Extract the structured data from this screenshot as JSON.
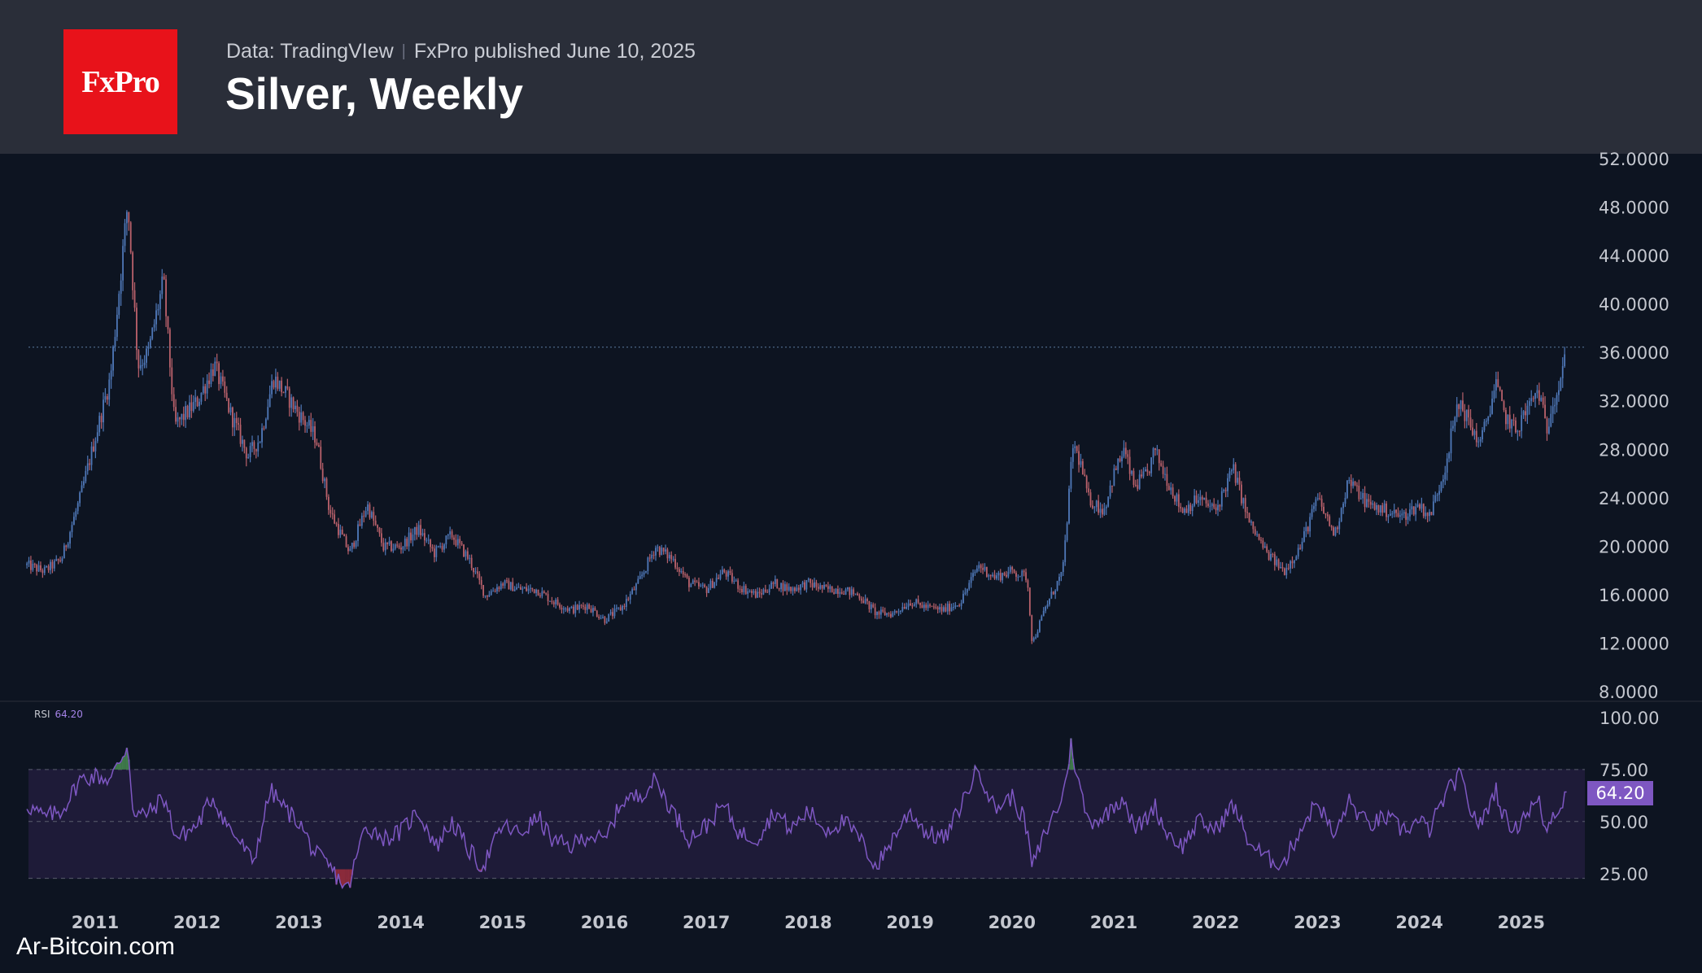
{
  "header": {
    "logo_text": "FxPro",
    "source_text": "Data: TradingVIew",
    "published_text": "FxPro published June 10, 2025",
    "title": "Silver, Weekly"
  },
  "watermark": "Ar-Bitcoin.com",
  "colors": {
    "background": "#0d1421",
    "header_bg": "#2a2e39",
    "logo_bg": "#e8121a",
    "candle_up": "#4f78b8",
    "candle_down": "#b9616b",
    "rsi_line": "#7e57c2",
    "rsi_band": "#1e1b38",
    "rsi_overbought_fill": "#3f7a4a",
    "rsi_oversold_fill": "#8a2a3a"
  },
  "rsi": {
    "label": "RSI",
    "value": "64.20",
    "badge": "64.20"
  },
  "chart_data": [
    {
      "type": "candlestick",
      "title": "Silver, Weekly",
      "yticks": [
        "52.0000",
        "48.0000",
        "44.0000",
        "40.0000",
        "36.0000",
        "32.0000",
        "28.0000",
        "24.0000",
        "20.0000",
        "16.0000",
        "12.0000",
        "8.0000"
      ],
      "ylim": [
        8,
        52
      ],
      "xticks": [
        "2011",
        "2012",
        "2013",
        "2014",
        "2015",
        "2016",
        "2017",
        "2018",
        "2019",
        "2020",
        "2021",
        "2022",
        "2023",
        "2024",
        "2025"
      ],
      "xlim": [
        2010.33,
        2025.5
      ],
      "last_price_line": 36.5,
      "price_path": [
        [
          2010.33,
          18.5
        ],
        [
          2010.5,
          18.0
        ],
        [
          2010.67,
          19.0
        ],
        [
          2010.85,
          24.0
        ],
        [
          2011.0,
          29.0
        ],
        [
          2011.15,
          34.0
        ],
        [
          2011.32,
          48.5
        ],
        [
          2011.42,
          35.0
        ],
        [
          2011.52,
          36.0
        ],
        [
          2011.67,
          42.0
        ],
        [
          2011.78,
          30.0
        ],
        [
          2012.0,
          32.0
        ],
        [
          2012.17,
          35.0
        ],
        [
          2012.33,
          31.0
        ],
        [
          2012.5,
          27.5
        ],
        [
          2012.62,
          29.0
        ],
        [
          2012.75,
          34.0
        ],
        [
          2012.88,
          32.5
        ],
        [
          2013.0,
          31.0
        ],
        [
          2013.17,
          29.0
        ],
        [
          2013.3,
          23.0
        ],
        [
          2013.5,
          19.5
        ],
        [
          2013.67,
          23.5
        ],
        [
          2013.83,
          20.0
        ],
        [
          2014.0,
          20.0
        ],
        [
          2014.17,
          21.5
        ],
        [
          2014.33,
          19.5
        ],
        [
          2014.5,
          21.0
        ],
        [
          2014.67,
          19.0
        ],
        [
          2014.83,
          16.0
        ],
        [
          2015.0,
          17.0
        ],
        [
          2015.17,
          16.5
        ],
        [
          2015.33,
          16.5
        ],
        [
          2015.5,
          15.5
        ],
        [
          2015.67,
          14.8
        ],
        [
          2015.83,
          15.2
        ],
        [
          2016.0,
          14.0
        ],
        [
          2016.17,
          15.0
        ],
        [
          2016.33,
          17.0
        ],
        [
          2016.5,
          20.0
        ],
        [
          2016.67,
          19.0
        ],
        [
          2016.83,
          17.0
        ],
        [
          2017.0,
          16.5
        ],
        [
          2017.17,
          18.0
        ],
        [
          2017.33,
          16.7
        ],
        [
          2017.5,
          16.0
        ],
        [
          2017.67,
          17.0
        ],
        [
          2017.83,
          16.5
        ],
        [
          2018.0,
          17.0
        ],
        [
          2018.17,
          16.5
        ],
        [
          2018.33,
          16.5
        ],
        [
          2018.5,
          16.0
        ],
        [
          2018.67,
          14.5
        ],
        [
          2018.83,
          14.5
        ],
        [
          2019.0,
          15.5
        ],
        [
          2019.17,
          15.0
        ],
        [
          2019.33,
          14.8
        ],
        [
          2019.5,
          15.5
        ],
        [
          2019.67,
          18.5
        ],
        [
          2019.83,
          17.5
        ],
        [
          2020.0,
          18.0
        ],
        [
          2020.15,
          17.5
        ],
        [
          2020.2,
          12.0
        ],
        [
          2020.33,
          15.0
        ],
        [
          2020.5,
          18.0
        ],
        [
          2020.6,
          28.5
        ],
        [
          2020.67,
          27.0
        ],
        [
          2020.75,
          24.0
        ],
        [
          2020.9,
          23.0
        ],
        [
          2021.0,
          26.0
        ],
        [
          2021.1,
          28.0
        ],
        [
          2021.2,
          25.0
        ],
        [
          2021.33,
          26.0
        ],
        [
          2021.4,
          28.0
        ],
        [
          2021.5,
          26.0
        ],
        [
          2021.67,
          23.0
        ],
        [
          2021.83,
          24.0
        ],
        [
          2022.0,
          23.0
        ],
        [
          2022.17,
          26.5
        ],
        [
          2022.33,
          22.0
        ],
        [
          2022.5,
          19.5
        ],
        [
          2022.67,
          18.0
        ],
        [
          2022.83,
          20.0
        ],
        [
          2023.0,
          24.0
        ],
        [
          2023.17,
          21.0
        ],
        [
          2023.3,
          25.5
        ],
        [
          2023.5,
          23.5
        ],
        [
          2023.67,
          23.0
        ],
        [
          2023.83,
          22.5
        ],
        [
          2024.0,
          23.5
        ],
        [
          2024.1,
          22.5
        ],
        [
          2024.25,
          26.5
        ],
        [
          2024.33,
          30.0
        ],
        [
          2024.4,
          32.0
        ],
        [
          2024.5,
          30.0
        ],
        [
          2024.6,
          28.5
        ],
        [
          2024.75,
          33.5
        ],
        [
          2024.83,
          31.0
        ],
        [
          2024.95,
          29.5
        ],
        [
          2025.0,
          30.5
        ],
        [
          2025.17,
          33.0
        ],
        [
          2025.25,
          29.5
        ],
        [
          2025.3,
          32.0
        ],
        [
          2025.36,
          33.0
        ],
        [
          2025.44,
          36.5
        ]
      ]
    },
    {
      "type": "line",
      "title": "RSI",
      "yticks": [
        "100.00",
        "75.00",
        "50.00",
        "25.00"
      ],
      "ylim": [
        10,
        100
      ],
      "bands": [
        25,
        50,
        75
      ],
      "last_value": 64.2,
      "rsi_path": [
        [
          2010.33,
          58
        ],
        [
          2010.5,
          52
        ],
        [
          2010.67,
          55
        ],
        [
          2010.85,
          70
        ],
        [
          2011.0,
          72
        ],
        [
          2011.15,
          70
        ],
        [
          2011.32,
          87
        ],
        [
          2011.38,
          52
        ],
        [
          2011.55,
          55
        ],
        [
          2011.67,
          62
        ],
        [
          2011.8,
          42
        ],
        [
          2012.0,
          48
        ],
        [
          2012.15,
          62
        ],
        [
          2012.3,
          48
        ],
        [
          2012.45,
          38
        ],
        [
          2012.55,
          30
        ],
        [
          2012.72,
          65
        ],
        [
          2012.88,
          55
        ],
        [
          2013.0,
          50
        ],
        [
          2013.15,
          35
        ],
        [
          2013.3,
          28
        ],
        [
          2013.48,
          17
        ],
        [
          2013.65,
          48
        ],
        [
          2013.85,
          42
        ],
        [
          2014.0,
          45
        ],
        [
          2014.17,
          55
        ],
        [
          2014.35,
          38
        ],
        [
          2014.5,
          50
        ],
        [
          2014.67,
          36
        ],
        [
          2014.8,
          28
        ],
        [
          2015.0,
          48
        ],
        [
          2015.17,
          44
        ],
        [
          2015.35,
          52
        ],
        [
          2015.5,
          40
        ],
        [
          2015.67,
          38
        ],
        [
          2015.85,
          44
        ],
        [
          2016.0,
          40
        ],
        [
          2016.17,
          60
        ],
        [
          2016.33,
          62
        ],
        [
          2016.5,
          70
        ],
        [
          2016.67,
          55
        ],
        [
          2016.83,
          42
        ],
        [
          2017.0,
          48
        ],
        [
          2017.17,
          58
        ],
        [
          2017.33,
          44
        ],
        [
          2017.5,
          42
        ],
        [
          2017.67,
          55
        ],
        [
          2017.83,
          46
        ],
        [
          2018.0,
          55
        ],
        [
          2018.17,
          46
        ],
        [
          2018.35,
          50
        ],
        [
          2018.5,
          42
        ],
        [
          2018.67,
          28
        ],
        [
          2018.83,
          42
        ],
        [
          2019.0,
          55
        ],
        [
          2019.17,
          44
        ],
        [
          2019.35,
          42
        ],
        [
          2019.5,
          58
        ],
        [
          2019.67,
          76
        ],
        [
          2019.83,
          56
        ],
        [
          2020.0,
          62
        ],
        [
          2020.13,
          50
        ],
        [
          2020.2,
          28
        ],
        [
          2020.33,
          45
        ],
        [
          2020.5,
          62
        ],
        [
          2020.58,
          87
        ],
        [
          2020.67,
          65
        ],
        [
          2020.75,
          50
        ],
        [
          2020.9,
          52
        ],
        [
          2021.0,
          58
        ],
        [
          2021.1,
          62
        ],
        [
          2021.2,
          46
        ],
        [
          2021.33,
          52
        ],
        [
          2021.4,
          58
        ],
        [
          2021.5,
          46
        ],
        [
          2021.67,
          38
        ],
        [
          2021.83,
          50
        ],
        [
          2022.0,
          46
        ],
        [
          2022.17,
          58
        ],
        [
          2022.33,
          40
        ],
        [
          2022.5,
          32
        ],
        [
          2022.67,
          30
        ],
        [
          2022.83,
          46
        ],
        [
          2023.0,
          60
        ],
        [
          2023.17,
          42
        ],
        [
          2023.3,
          60
        ],
        [
          2023.5,
          48
        ],
        [
          2023.67,
          52
        ],
        [
          2023.83,
          46
        ],
        [
          2024.0,
          50
        ],
        [
          2024.1,
          46
        ],
        [
          2024.25,
          62
        ],
        [
          2024.33,
          68
        ],
        [
          2024.4,
          72
        ],
        [
          2024.5,
          56
        ],
        [
          2024.6,
          48
        ],
        [
          2024.75,
          66
        ],
        [
          2024.83,
          52
        ],
        [
          2024.95,
          46
        ],
        [
          2025.0,
          52
        ],
        [
          2025.17,
          60
        ],
        [
          2025.25,
          44
        ],
        [
          2025.3,
          54
        ],
        [
          2025.38,
          56
        ],
        [
          2025.45,
          64.2
        ]
      ]
    }
  ]
}
